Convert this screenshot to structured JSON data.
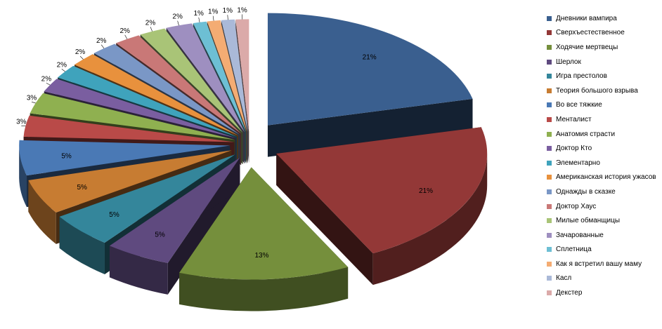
{
  "chart_data": {
    "type": "pie",
    "style": "3d-exploded",
    "legend_position": "right",
    "categories": [
      "Дневники вампира",
      "Сверхъестественное",
      "Ходячие мертвецы",
      "Шерлок",
      "Игра престолов",
      "Теория большого взрыва",
      "Во все тяжкие",
      "Менталист",
      "Анатомия страсти",
      "Доктор Кто",
      "Элементарно",
      "Американская история ужасов",
      "Однажды в сказке",
      "Доктор Хаус",
      "Милые обманщицы",
      "Зачарованные",
      "Сплетница",
      "Как я встретил вашу маму",
      "Касл",
      "Декстер"
    ],
    "values": [
      21,
      21,
      13,
      5,
      5,
      5,
      5,
      3,
      3,
      2,
      2,
      2,
      2,
      2,
      2,
      2,
      1,
      1,
      1,
      1
    ],
    "data_labels": [
      "21%",
      "21%",
      "13%",
      "5%",
      "5%",
      "5%",
      "5%",
      "3%",
      "3%",
      "2%",
      "2%",
      "2%",
      "2%",
      "2%",
      "2%",
      "2%",
      "1%",
      "1%",
      "1%",
      "1%"
    ],
    "colors": [
      "#3a5f8f",
      "#933837",
      "#758f3c",
      "#5f4a7f",
      "#34869b",
      "#c77c32",
      "#4a79b5",
      "#b94a48",
      "#8fb050",
      "#7a5ea0",
      "#3fa3bc",
      "#e8913d",
      "#7a97c6",
      "#c97877",
      "#a9c477",
      "#9e8fc0",
      "#6dbfd4",
      "#f4ac73",
      "#aab9d8",
      "#dbaaa9"
    ]
  }
}
